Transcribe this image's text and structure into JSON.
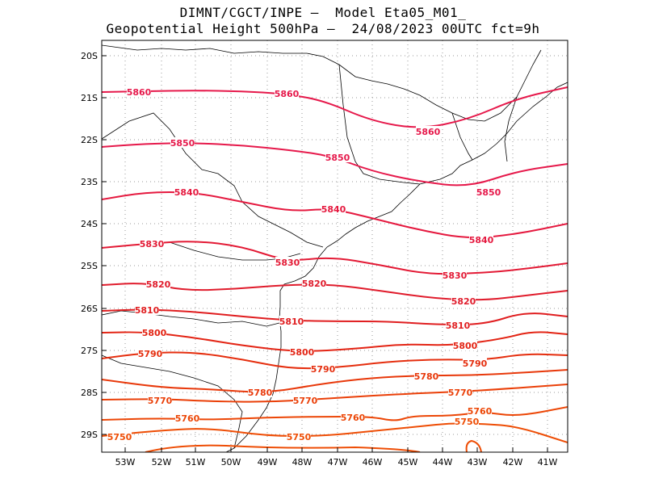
{
  "title": {
    "line1": "DIMNT/CGCT/INPE –  Model Eta05_M01_",
    "line2": "Geopotential Height 500hPa –  24/08/2023 00UTC fct=9h"
  },
  "axes": {
    "lat_labels": [
      "20S",
      "21S",
      "22S",
      "23S",
      "24S",
      "25S",
      "26S",
      "27S",
      "28S",
      "29S"
    ],
    "lon_labels": [
      "53W",
      "52W",
      "51W",
      "50W",
      "49W",
      "48W",
      "47W",
      "46W",
      "45W",
      "44W",
      "43W",
      "42W",
      "41W"
    ]
  },
  "contours": [
    {
      "value": "5860",
      "color": "#e6194b",
      "labels": [
        "5860",
        "5860",
        "5860"
      ]
    },
    {
      "value": "5850",
      "color": "#e6194b",
      "labels": [
        "5850",
        "5850",
        "5850"
      ]
    },
    {
      "value": "5840",
      "color": "#e5193f",
      "labels": [
        "5840",
        "5840",
        "5840"
      ]
    },
    {
      "value": "5830",
      "color": "#e31a35",
      "labels": [
        "5830",
        "5830",
        "5830"
      ]
    },
    {
      "value": "5820",
      "color": "#e01c2c",
      "labels": [
        "5820",
        "5820",
        "5820"
      ]
    },
    {
      "value": "5810",
      "color": "#e01e20",
      "labels": [
        "5810",
        "5810",
        "5810"
      ]
    },
    {
      "value": "5800",
      "color": "#e32414",
      "labels": [
        "5800",
        "5800",
        "5800"
      ]
    },
    {
      "value": "5790",
      "color": "#e52e0e",
      "labels": [
        "5790",
        "5790",
        "5790"
      ]
    },
    {
      "value": "5780",
      "color": "#e8380a",
      "labels": [
        "5780",
        "5780"
      ]
    },
    {
      "value": "5770",
      "color": "#ea3f08",
      "labels": [
        "5770",
        "5770",
        "5770"
      ]
    },
    {
      "value": "5760",
      "color": "#ec4606",
      "labels": [
        "5760",
        "5760",
        "5760"
      ]
    },
    {
      "value": "5750",
      "color": "#ee4d05",
      "labels": [
        "5750",
        "5750",
        "5750"
      ]
    }
  ],
  "colors": {
    "border": "#000000",
    "grid": "#999999",
    "coast": "#000000"
  }
}
